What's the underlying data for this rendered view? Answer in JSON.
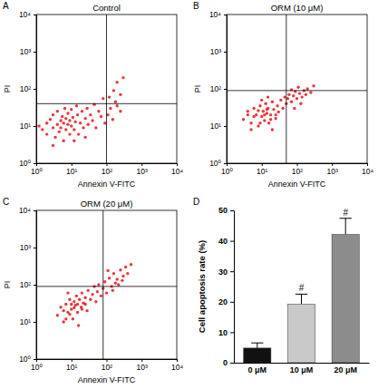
{
  "chart_data": [
    {
      "type": "scatter",
      "panel": "A",
      "title": "Control",
      "x_label": "Annexin V-FITC",
      "y_label": "PI",
      "log": true,
      "color": "#e3161c",
      "xlim": [
        1,
        10000
      ],
      "ylim": [
        1,
        10000
      ],
      "xticks": [
        {
          "value": 1,
          "label": "10⁰"
        },
        {
          "value": 10,
          "label": "10¹"
        },
        {
          "value": 100,
          "label": "10²"
        },
        {
          "value": 1000,
          "label": "10³"
        },
        {
          "value": 10000,
          "label": "10⁴"
        }
      ],
      "yticks": [
        {
          "value": 1,
          "label": "10⁰"
        },
        {
          "value": 10,
          "label": "10¹"
        },
        {
          "value": 100,
          "label": "10²"
        },
        {
          "value": 1000,
          "label": "10³"
        },
        {
          "value": 10000,
          "label": "10⁴"
        }
      ],
      "gates": {
        "x": 100,
        "y": 40
      },
      "x": [
        1.5,
        2,
        2,
        2.5,
        3,
        3,
        3.5,
        4,
        4,
        4.5,
        5,
        5,
        5.5,
        6,
        6,
        6.5,
        7,
        7,
        8,
        8,
        9,
        9,
        10,
        10,
        11,
        12,
        13,
        14,
        15,
        16,
        18,
        20,
        22,
        25,
        28,
        30,
        35,
        40,
        45,
        50,
        60,
        70,
        80,
        90,
        110,
        130,
        150,
        200,
        250,
        120,
        160,
        200,
        250,
        300,
        180,
        3,
        12,
        25,
        1.2
      ],
      "values": [
        8,
        12,
        6,
        15,
        9,
        20,
        5,
        11,
        25,
        7,
        14,
        9,
        18,
        4,
        12,
        30,
        8,
        16,
        11,
        22,
        6,
        14,
        10,
        28,
        17,
        8,
        13,
        35,
        20,
        6,
        12,
        25,
        9,
        16,
        30,
        11,
        20,
        14,
        38,
        9,
        25,
        18,
        55,
        12,
        20,
        30,
        15,
        35,
        25,
        60,
        90,
        150,
        70,
        200,
        45,
        3,
        4,
        5,
        10
      ]
    },
    {
      "type": "scatter",
      "panel": "B",
      "title": "ORM (10 μM)",
      "x_label": "Annexin V-FITC",
      "y_label": "PI",
      "log": true,
      "color": "#e3161c",
      "xlim": [
        1,
        10000
      ],
      "ylim": [
        1,
        10000
      ],
      "xticks": [
        {
          "value": 1,
          "label": "10⁰"
        },
        {
          "value": 10,
          "label": "10¹"
        },
        {
          "value": 100,
          "label": "10²"
        },
        {
          "value": 1000,
          "label": "10³"
        },
        {
          "value": 10000,
          "label": "10⁴"
        }
      ],
      "yticks": [
        {
          "value": 1,
          "label": "10⁰"
        },
        {
          "value": 10,
          "label": "10¹"
        },
        {
          "value": 100,
          "label": "10²"
        },
        {
          "value": 1000,
          "label": "10³"
        },
        {
          "value": 10000,
          "label": "10⁴"
        }
      ],
      "gates": {
        "x": 50,
        "y": 90
      },
      "x": [
        3,
        4,
        5,
        6,
        7,
        8,
        9,
        10,
        11,
        12,
        13,
        14,
        15,
        16,
        18,
        20,
        22,
        25,
        28,
        30,
        35,
        40,
        45,
        50,
        55,
        60,
        70,
        80,
        90,
        100,
        120,
        140,
        160,
        180,
        200,
        110,
        70,
        250,
        300,
        5,
        10,
        20,
        15,
        130,
        85,
        6,
        8,
        12,
        18,
        25,
        4,
        9,
        14
      ],
      "values": [
        15,
        25,
        12,
        30,
        20,
        10,
        35,
        18,
        25,
        14,
        40,
        22,
        30,
        12,
        20,
        45,
        28,
        16,
        35,
        24,
        50,
        30,
        60,
        40,
        55,
        70,
        45,
        65,
        85,
        55,
        75,
        60,
        90,
        70,
        100,
        110,
        95,
        80,
        120,
        8,
        50,
        8,
        60,
        40,
        30,
        18,
        26,
        20,
        15,
        20,
        20,
        12,
        28
      ]
    },
    {
      "type": "scatter",
      "panel": "C",
      "title": "ORM (20 μM)",
      "x_label": "Annexin V-FITC",
      "y_label": "PI",
      "log": true,
      "color": "#e3161c",
      "xlim": [
        1,
        10000
      ],
      "ylim": [
        1,
        10000
      ],
      "xticks": [
        {
          "value": 1,
          "label": "10⁰"
        },
        {
          "value": 10,
          "label": "10¹"
        },
        {
          "value": 100,
          "label": "10²"
        },
        {
          "value": 1000,
          "label": "10³"
        },
        {
          "value": 10000,
          "label": "10⁴"
        }
      ],
      "yticks": [
        {
          "value": 1,
          "label": "10⁰"
        },
        {
          "value": 10,
          "label": "10¹"
        },
        {
          "value": 100,
          "label": "10²"
        },
        {
          "value": 1000,
          "label": "10³"
        },
        {
          "value": 10000,
          "label": "10⁴"
        }
      ],
      "gates": {
        "x": 80,
        "y": 90
      },
      "x": [
        4,
        5,
        6,
        7,
        8,
        9,
        10,
        11,
        12,
        13,
        14,
        15,
        17,
        19,
        20,
        22,
        25,
        28,
        30,
        35,
        40,
        45,
        50,
        55,
        60,
        70,
        80,
        90,
        100,
        120,
        140,
        160,
        180,
        200,
        250,
        300,
        350,
        400,
        500,
        150,
        220,
        110,
        280,
        8,
        16,
        6,
        9,
        12,
        15,
        20,
        7,
        10,
        25
      ],
      "values": [
        15,
        25,
        10,
        30,
        18,
        40,
        22,
        12,
        35,
        28,
        50,
        18,
        40,
        25,
        60,
        32,
        45,
        20,
        70,
        40,
        55,
        90,
        35,
        65,
        100,
        50,
        80,
        120,
        60,
        150,
        90,
        200,
        110,
        140,
        250,
        170,
        300,
        200,
        350,
        70,
        100,
        240,
        130,
        60,
        8,
        20,
        16,
        24,
        30,
        22,
        12,
        30,
        30
      ]
    },
    {
      "type": "bar",
      "panel": "D",
      "y_label": "Cell apoptosis rate (%)",
      "categories": [
        "0 μM",
        "10 μM",
        "20 μM"
      ],
      "values": [
        4.8,
        19.2,
        42.1
      ],
      "errors": [
        1.7,
        3.3,
        5.3
      ],
      "significance": [
        null,
        "#",
        "#"
      ],
      "colors": [
        "#111111",
        "#c9c9c9",
        "#8c8c8c"
      ],
      "ylim": [
        0,
        50
      ],
      "yticks": [
        0,
        10,
        20,
        30,
        40,
        50
      ]
    }
  ]
}
